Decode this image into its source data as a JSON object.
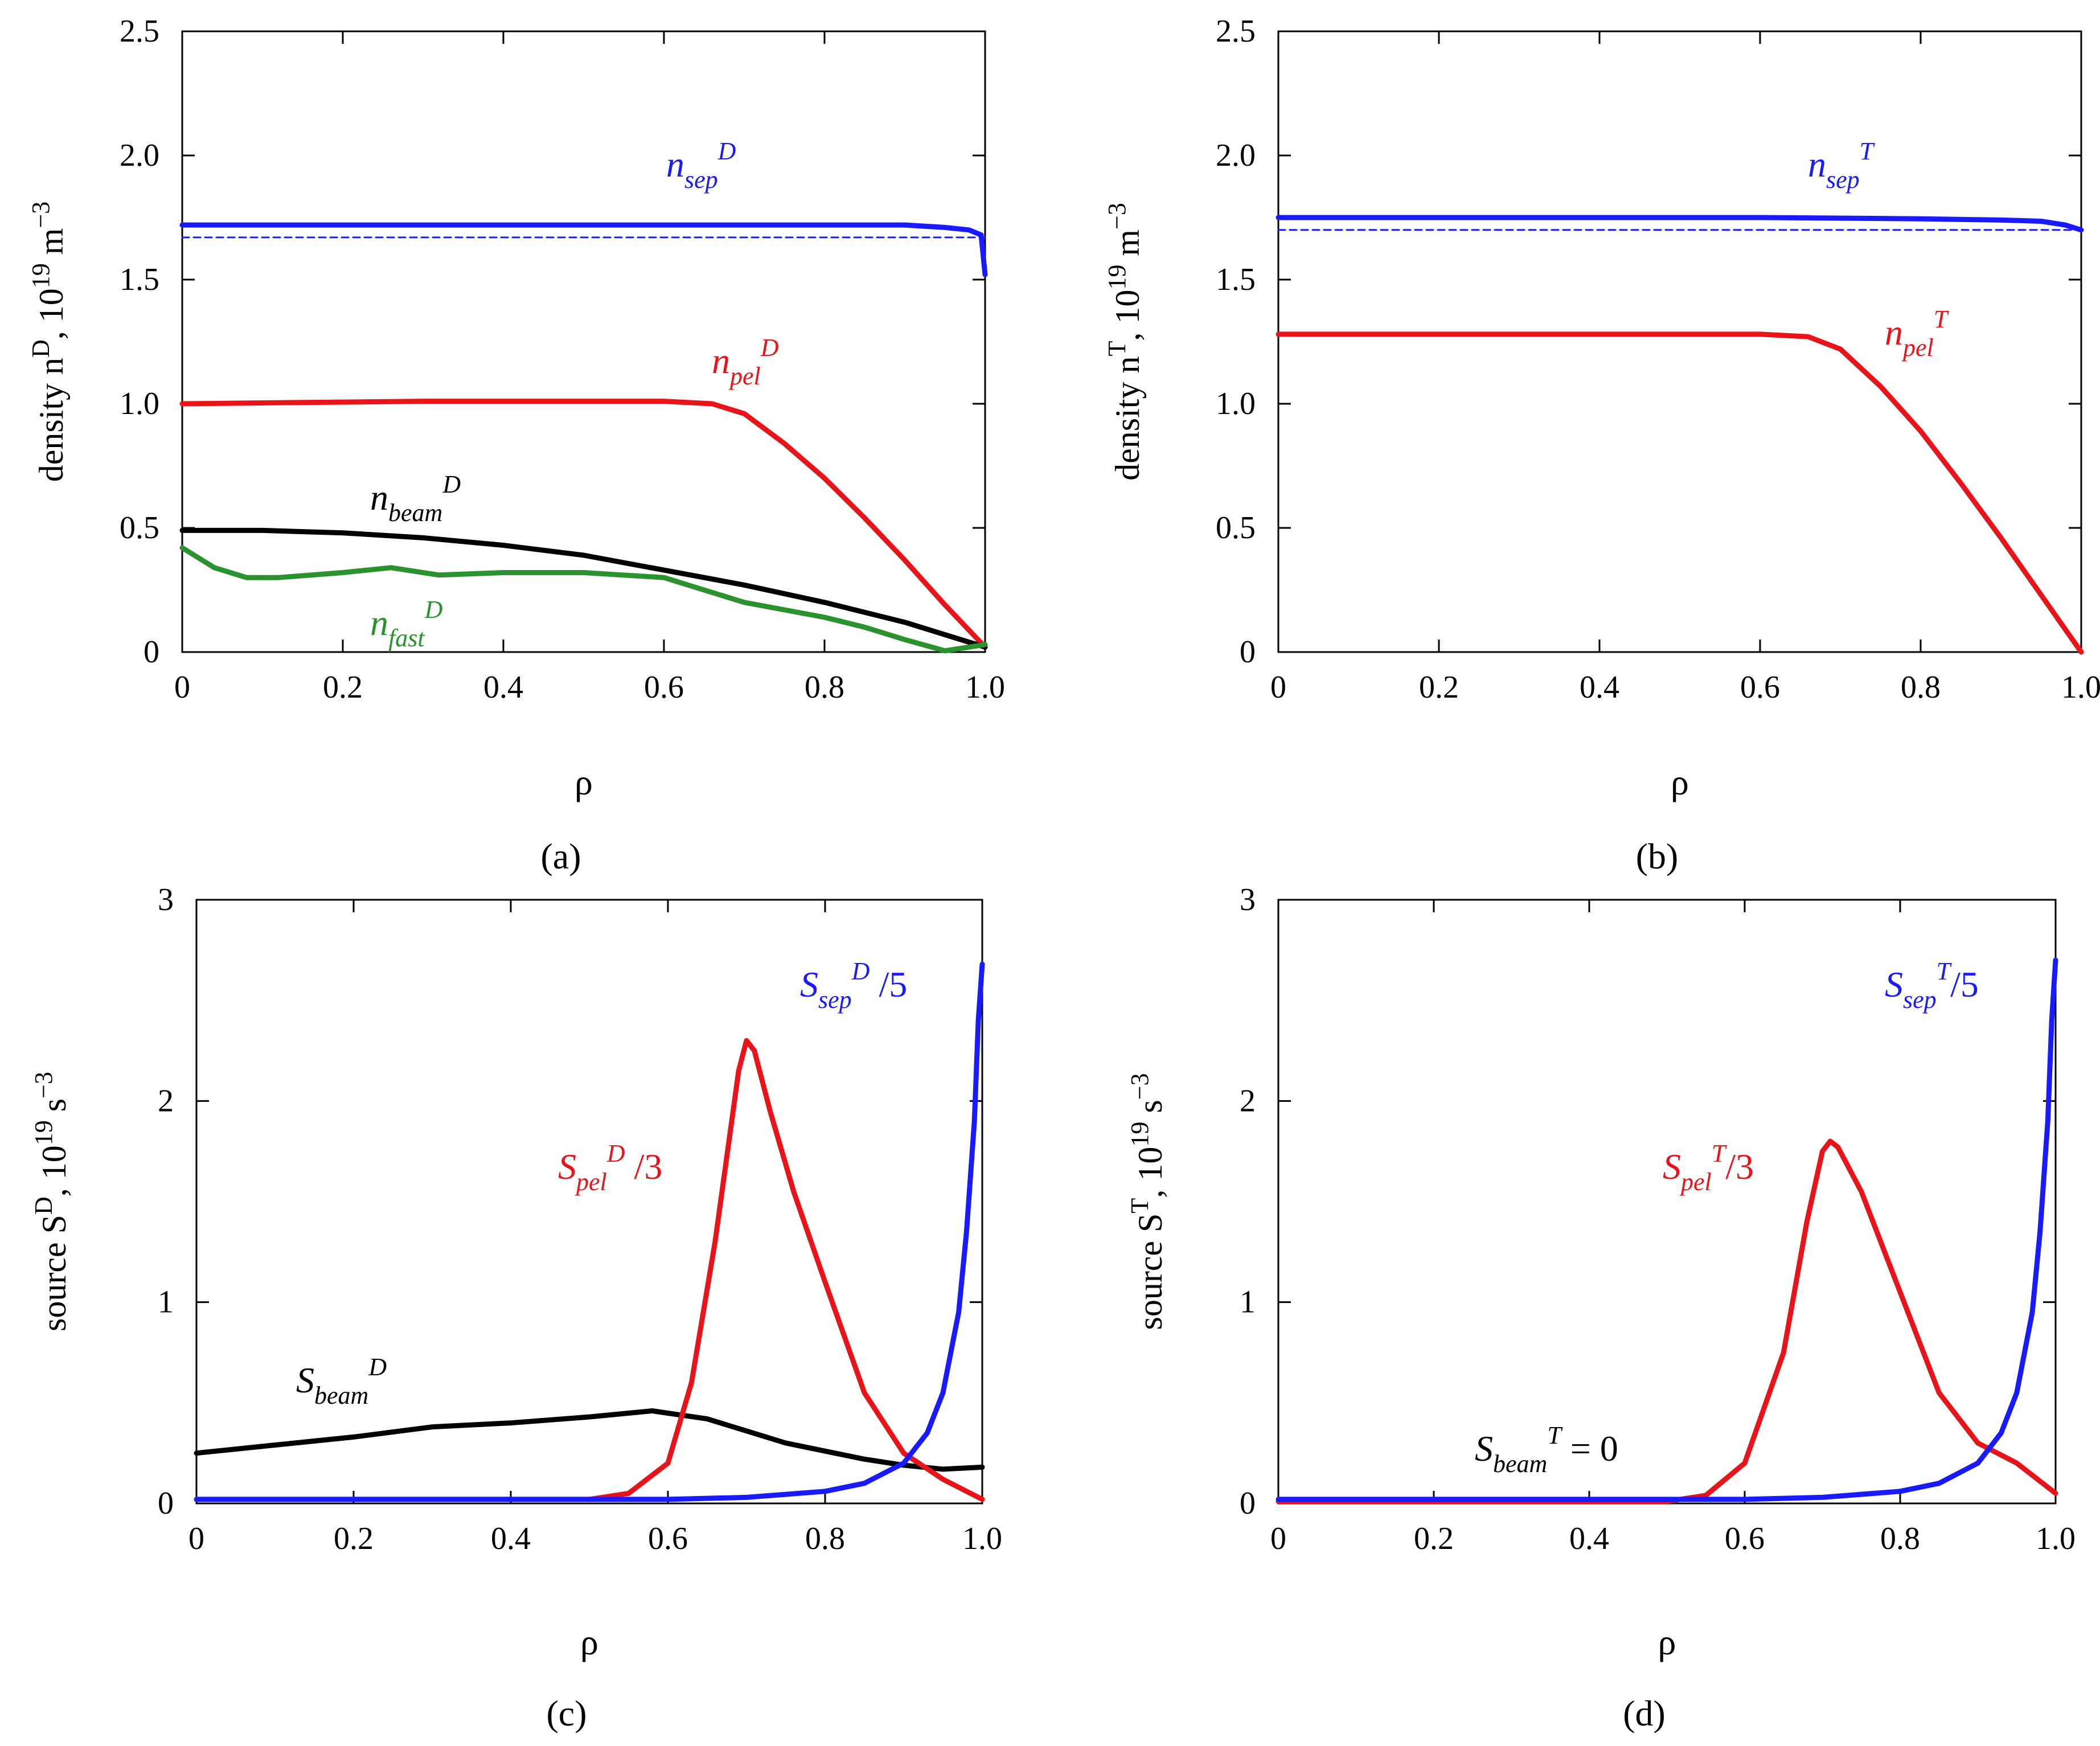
{
  "chart_data": [
    {
      "id": "a",
      "type": "line",
      "panel_label": "(a)",
      "xlabel": "ρ",
      "ylabel": "density n^D, 10^19 m^−3",
      "xlim": [
        0,
        1.0
      ],
      "ylim": [
        0,
        2.5
      ],
      "xticks": [
        "0",
        "0.2",
        "0.4",
        "0.6",
        "0.8",
        "1.0"
      ],
      "yticks": [
        "0",
        "0.5",
        "1.0",
        "1.5",
        "2.0",
        "2.5"
      ],
      "series": [
        {
          "name": "n_sep^D",
          "color": "#1a1aff",
          "style": "solid",
          "x": [
            0,
            0.2,
            0.4,
            0.6,
            0.8,
            0.9,
            0.95,
            0.98,
            0.995,
            1.0
          ],
          "y": [
            1.72,
            1.72,
            1.72,
            1.72,
            1.72,
            1.72,
            1.71,
            1.7,
            1.68,
            1.52
          ]
        },
        {
          "name": "n_sep^D (dashed)",
          "color": "#1a1aff",
          "style": "dashed",
          "x": [
            0,
            1.0
          ],
          "y": [
            1.67,
            1.67
          ]
        },
        {
          "name": "n_pel^D",
          "color": "#e8141a",
          "style": "solid",
          "x": [
            0,
            0.3,
            0.6,
            0.66,
            0.7,
            0.75,
            0.8,
            0.85,
            0.9,
            0.95,
            1.0
          ],
          "y": [
            1.0,
            1.01,
            1.01,
            1.0,
            0.96,
            0.84,
            0.7,
            0.54,
            0.37,
            0.19,
            0.02
          ]
        },
        {
          "name": "n_beam^D",
          "color": "#000000",
          "style": "solid",
          "x": [
            0,
            0.1,
            0.2,
            0.3,
            0.4,
            0.5,
            0.6,
            0.7,
            0.8,
            0.9,
            1.0
          ],
          "y": [
            0.49,
            0.49,
            0.48,
            0.46,
            0.43,
            0.39,
            0.33,
            0.27,
            0.2,
            0.12,
            0.02
          ]
        },
        {
          "name": "n_fast^D",
          "color": "#2a922e",
          "style": "solid",
          "x": [
            0,
            0.04,
            0.08,
            0.12,
            0.2,
            0.26,
            0.32,
            0.4,
            0.5,
            0.6,
            0.62,
            0.7,
            0.8,
            0.85,
            0.9,
            0.95,
            1.0
          ],
          "y": [
            0.42,
            0.34,
            0.3,
            0.3,
            0.32,
            0.34,
            0.31,
            0.32,
            0.32,
            0.3,
            0.28,
            0.2,
            0.14,
            0.1,
            0.05,
            0.005,
            0.03
          ]
        }
      ],
      "labels": [
        {
          "base": "n",
          "sub": "sep",
          "sup": "D",
          "color": "#1a1aff"
        },
        {
          "base": "n",
          "sub": "pel",
          "sup": "D",
          "color": "#e8141a"
        },
        {
          "base": "n",
          "sub": "beam",
          "sup": "D",
          "color": "#000000"
        },
        {
          "base": "n",
          "sub": "fast",
          "sup": "D",
          "color": "#2a922e"
        }
      ]
    },
    {
      "id": "b",
      "type": "line",
      "panel_label": "(b)",
      "xlabel": "ρ",
      "ylabel": "density n^T, 10^19 m^−3",
      "xlim": [
        0,
        1.0
      ],
      "ylim": [
        0,
        2.5
      ],
      "xticks": [
        "0",
        "0.2",
        "0.4",
        "0.6",
        "0.8",
        "1.0"
      ],
      "yticks": [
        "0",
        "0.5",
        "1.0",
        "1.5",
        "2.0",
        "2.5"
      ],
      "series": [
        {
          "name": "n_sep^T",
          "color": "#1a1aff",
          "style": "solid",
          "x": [
            0,
            0.2,
            0.4,
            0.6,
            0.8,
            0.9,
            0.95,
            0.98,
            1.0
          ],
          "y": [
            1.75,
            1.75,
            1.75,
            1.75,
            1.745,
            1.74,
            1.735,
            1.72,
            1.7
          ]
        },
        {
          "name": "n_sep^T (dashed)",
          "color": "#1a1aff",
          "style": "dashed",
          "x": [
            0,
            1.0
          ],
          "y": [
            1.7,
            1.7
          ]
        },
        {
          "name": "n_pel^T",
          "color": "#e8141a",
          "style": "solid",
          "x": [
            0,
            0.3,
            0.6,
            0.66,
            0.7,
            0.75,
            0.8,
            0.85,
            0.9,
            0.95,
            1.0
          ],
          "y": [
            1.28,
            1.28,
            1.28,
            1.27,
            1.22,
            1.07,
            0.89,
            0.68,
            0.46,
            0.23,
            0.0
          ]
        }
      ],
      "labels": [
        {
          "base": "n",
          "sub": "sep",
          "sup": "T",
          "color": "#1a1aff"
        },
        {
          "base": "n",
          "sub": "pel",
          "sup": "T",
          "color": "#e8141a"
        }
      ]
    },
    {
      "id": "c",
      "type": "line",
      "panel_label": "(c)",
      "xlabel": "ρ",
      "ylabel": "source S^D, 10^19 s^−3",
      "xlim": [
        0,
        1.0
      ],
      "ylim": [
        0,
        3
      ],
      "xticks": [
        "0",
        "0.2",
        "0.4",
        "0.6",
        "0.8",
        "1.0"
      ],
      "yticks": [
        "0",
        "1",
        "2",
        "3"
      ],
      "series": [
        {
          "name": "S_beam^D",
          "color": "#000000",
          "style": "solid",
          "x": [
            0,
            0.1,
            0.2,
            0.3,
            0.4,
            0.5,
            0.58,
            0.65,
            0.75,
            0.85,
            0.9,
            0.95,
            1.0
          ],
          "y": [
            0.25,
            0.29,
            0.33,
            0.38,
            0.4,
            0.43,
            0.46,
            0.42,
            0.3,
            0.22,
            0.19,
            0.17,
            0.18
          ]
        },
        {
          "name": "S_pel^D / 3",
          "color": "#e8141a",
          "style": "solid",
          "x": [
            0,
            0.5,
            0.55,
            0.6,
            0.63,
            0.66,
            0.69,
            0.7,
            0.71,
            0.73,
            0.76,
            0.8,
            0.85,
            0.9,
            0.95,
            1.0
          ],
          "y": [
            0.02,
            0.02,
            0.05,
            0.2,
            0.6,
            1.3,
            2.15,
            2.3,
            2.25,
            1.95,
            1.55,
            1.1,
            0.55,
            0.25,
            0.12,
            0.02
          ]
        },
        {
          "name": "S_sep^D / 5",
          "color": "#1a1aff",
          "style": "solid",
          "x": [
            0,
            0.5,
            0.6,
            0.7,
            0.8,
            0.85,
            0.9,
            0.93,
            0.95,
            0.97,
            0.98,
            0.99,
            0.995,
            1.0
          ],
          "y": [
            0.02,
            0.02,
            0.02,
            0.03,
            0.06,
            0.1,
            0.2,
            0.35,
            0.55,
            0.95,
            1.35,
            1.9,
            2.4,
            2.68
          ]
        }
      ],
      "labels": [
        {
          "base": "S",
          "sub": "beam",
          "sup": "D",
          "tail": "",
          "color": "#000000"
        },
        {
          "base": "S",
          "sub": "pel",
          "sup": "D",
          "tail": " /3",
          "color": "#e8141a"
        },
        {
          "base": "S",
          "sub": "sep",
          "sup": "D",
          "tail": " /5",
          "color": "#1a1aff"
        }
      ]
    },
    {
      "id": "d",
      "type": "line",
      "panel_label": "(d)",
      "xlabel": "ρ",
      "ylabel": "source S^T, 10^19 s^−3",
      "xlim": [
        0,
        1.0
      ],
      "ylim": [
        0,
        3
      ],
      "xticks": [
        "0",
        "0.2",
        "0.4",
        "0.6",
        "0.8",
        "1.0"
      ],
      "yticks": [
        "0",
        "1",
        "2",
        "3"
      ],
      "series": [
        {
          "name": "S_pel^T / 3",
          "color": "#e8141a",
          "style": "solid",
          "x": [
            0,
            0.5,
            0.55,
            0.6,
            0.65,
            0.68,
            0.7,
            0.71,
            0.72,
            0.75,
            0.8,
            0.85,
            0.9,
            0.95,
            1.0
          ],
          "y": [
            0.01,
            0.01,
            0.04,
            0.2,
            0.75,
            1.4,
            1.75,
            1.8,
            1.77,
            1.55,
            1.05,
            0.55,
            0.3,
            0.2,
            0.05
          ]
        },
        {
          "name": "S_sep^T / 5",
          "color": "#1a1aff",
          "style": "solid",
          "x": [
            0,
            0.5,
            0.6,
            0.7,
            0.8,
            0.85,
            0.9,
            0.93,
            0.95,
            0.97,
            0.98,
            0.99,
            0.995,
            1.0
          ],
          "y": [
            0.02,
            0.02,
            0.02,
            0.03,
            0.06,
            0.1,
            0.2,
            0.35,
            0.55,
            0.95,
            1.35,
            1.9,
            2.4,
            2.7
          ]
        }
      ],
      "labels": [
        {
          "base": "S",
          "sub": "pel",
          "sup": "T",
          "tail": "/3",
          "color": "#e8141a"
        },
        {
          "base": "S",
          "sub": "sep",
          "sup": "T",
          "tail": "/5",
          "color": "#1a1aff"
        },
        {
          "base": "S",
          "sub": "beam",
          "sup": "T",
          "tail": " = 0",
          "color": "#000000"
        }
      ]
    }
  ]
}
